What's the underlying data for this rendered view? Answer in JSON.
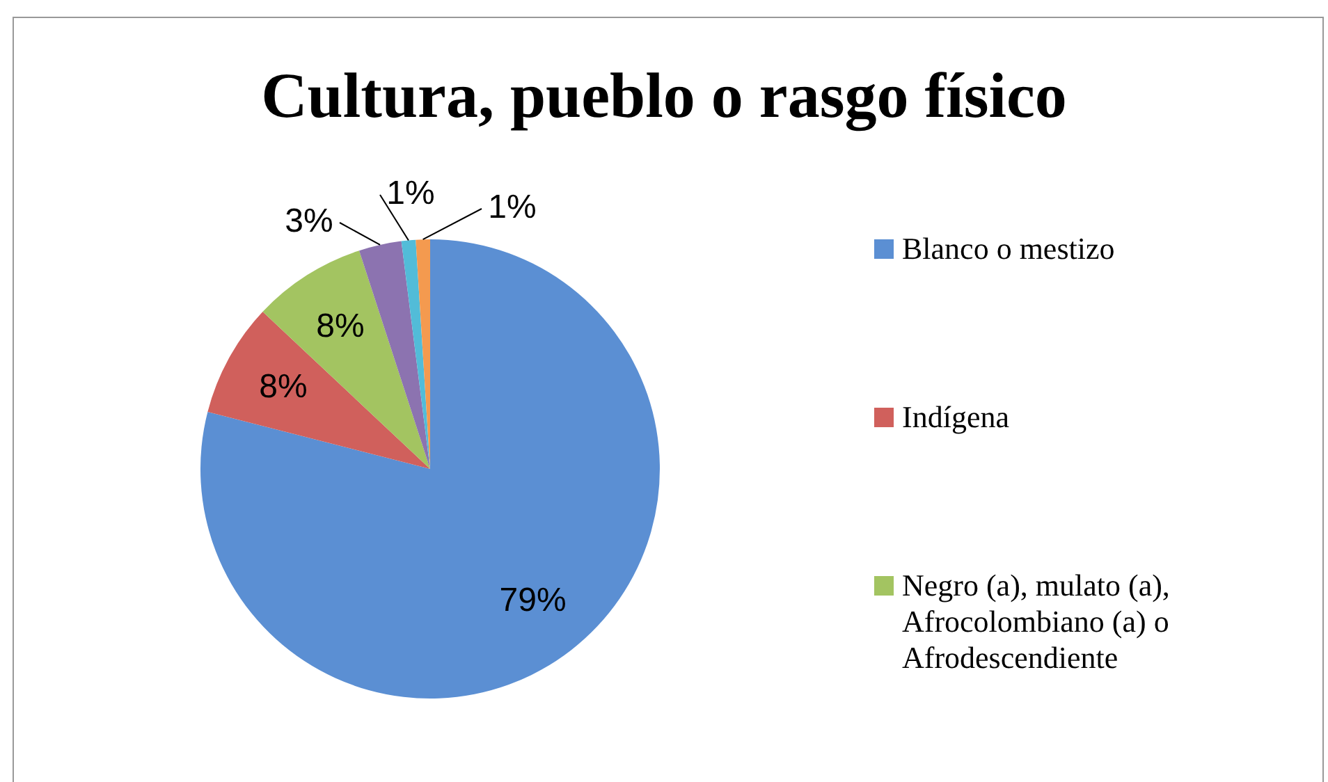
{
  "chart_data": {
    "type": "pie",
    "title": "Cultura, pueblo o rasgo físico",
    "categories": [
      "Blanco o mestizo",
      "Indígena",
      "Negro (a), mulato (a), Afrocolombiano (a) o Afrodescendiente",
      null,
      null,
      null
    ],
    "values": [
      79,
      8,
      8,
      3,
      1,
      1
    ],
    "value_labels": [
      "79%",
      "8%",
      "8%",
      "3%",
      "1%",
      "1%"
    ],
    "colors": [
      "#5b8fd3",
      "#d0605c",
      "#a3c461",
      "#8c73b0",
      "#52bcd8",
      "#f49a4f"
    ],
    "legend": "right"
  }
}
